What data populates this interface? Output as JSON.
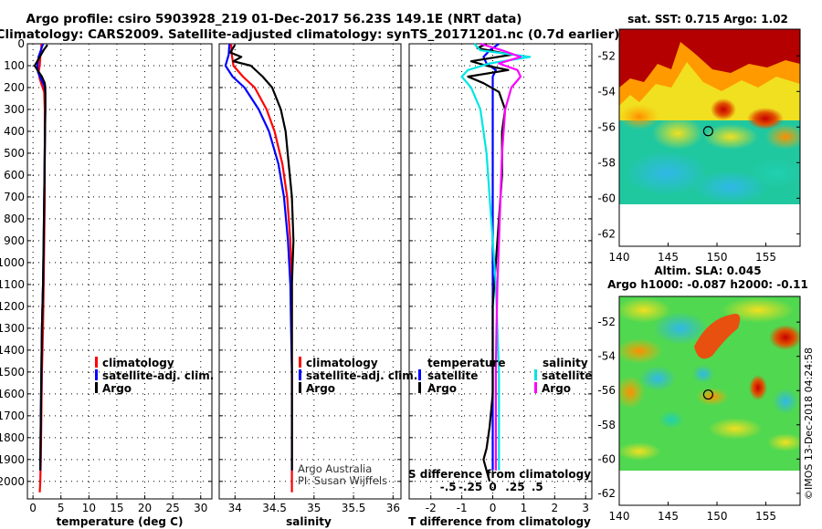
{
  "header": {
    "line1": "Argo profile: csiro 5903928_219 01-Dec-2017 56.23S 149.1E (NRT data)",
    "line2": "Climatology: CARS2009. Satellite-adjusted climatology: synTS_20171201.nc (0.7d earlier)"
  },
  "footer": {
    "argo_australia": "Argo Australia",
    "pi": "PI: Susan Wijffels",
    "imos_stamp": "©IMOS 13-Dec-2018 04:24:58"
  },
  "colors": {
    "climatology": "#ff0000",
    "satellite": "#0000ff",
    "argo": "#000000",
    "salinity_satellite": "#00e5e5",
    "salinity_argo": "#ff00ff"
  },
  "chart_data": [
    {
      "type": "line",
      "name": "temperature-profile",
      "xlabel": "temperature (deg C)",
      "xlim": [
        -1,
        32
      ],
      "xticks": [
        0,
        5,
        10,
        15,
        20,
        25,
        30
      ],
      "ylim": [
        0,
        2080
      ],
      "yticks": [
        0,
        100,
        200,
        300,
        400,
        500,
        600,
        700,
        800,
        900,
        1000,
        1100,
        1200,
        1300,
        1400,
        1500,
        1600,
        1700,
        1800,
        1900,
        2000
      ],
      "grid": true,
      "legend": [
        "climatology",
        "satellite-adj. clim.",
        "Argo"
      ],
      "series": [
        {
          "name": "climatology",
          "color": "#ff0000",
          "x": [
            1.5,
            1.5,
            1.3,
            1.2,
            1.0,
            1.2,
            1.6,
            2.0,
            2.1,
            2.1,
            2.1,
            2.0,
            1.9,
            1.8,
            1.6,
            1.5,
            1.4,
            1.3,
            1.2
          ],
          "y": [
            0,
            30,
            60,
            100,
            130,
            160,
            190,
            220,
            300,
            500,
            700,
            900,
            1100,
            1300,
            1500,
            1700,
            1900,
            2000,
            2050
          ]
        },
        {
          "name": "satellite-adj. clim.",
          "color": "#0000ff",
          "x": [
            1.8,
            1.4,
            1.0,
            0.8,
            0.9,
            1.4,
            2.0,
            2.2,
            2.2,
            2.1,
            2.0,
            1.9,
            1.8,
            1.6,
            1.5,
            1.4,
            1.3
          ],
          "y": [
            0,
            30,
            60,
            100,
            130,
            160,
            190,
            220,
            300,
            500,
            700,
            900,
            1100,
            1300,
            1500,
            1700,
            1950
          ]
        },
        {
          "name": "Argo",
          "color": "#000000",
          "x": [
            2.6,
            2.0,
            1.2,
            0.3,
            0.8,
            1.6,
            2.1,
            2.2,
            2.2,
            2.1,
            2.0,
            1.9,
            1.8,
            1.6,
            1.5,
            1.4,
            1.3
          ],
          "y": [
            5,
            25,
            60,
            100,
            120,
            150,
            180,
            200,
            300,
            500,
            700,
            900,
            1100,
            1300,
            1500,
            1700,
            1950
          ]
        }
      ]
    },
    {
      "type": "line",
      "name": "salinity-profile",
      "xlabel": "salinity",
      "xlim": [
        33.8,
        36.1
      ],
      "xticks": [
        34,
        34.5,
        35,
        35.5,
        36
      ],
      "ylim": [
        0,
        2080
      ],
      "grid": true,
      "legend": [
        "climatology",
        "satellite-adj. clim.",
        "Argo"
      ],
      "series": [
        {
          "name": "climatology",
          "color": "#ff0000",
          "x": [
            33.95,
            33.96,
            33.98,
            34.1,
            34.25,
            34.4,
            34.5,
            34.6,
            34.66,
            34.7,
            34.72,
            34.72,
            34.72,
            34.72,
            34.72
          ],
          "y": [
            0,
            50,
            100,
            150,
            200,
            300,
            400,
            550,
            700,
            900,
            1100,
            1300,
            1500,
            1800,
            2050
          ]
        },
        {
          "name": "satellite-adj. clim.",
          "color": "#0000ff",
          "x": [
            33.93,
            33.92,
            33.88,
            33.97,
            34.12,
            34.3,
            34.43,
            34.55,
            34.62,
            34.67,
            34.7,
            34.71,
            34.72,
            34.72,
            34.72
          ],
          "y": [
            0,
            50,
            100,
            150,
            200,
            300,
            400,
            550,
            700,
            900,
            1100,
            1300,
            1500,
            1800,
            1950
          ]
        },
        {
          "name": "Argo",
          "color": "#000000",
          "x": [
            34.0,
            33.94,
            34.08,
            33.98,
            34.2,
            34.35,
            34.47,
            34.58,
            34.64,
            34.68,
            34.72,
            34.74,
            34.72,
            34.72,
            34.72,
            34.72,
            34.72,
            34.72
          ],
          "y": [
            5,
            40,
            60,
            80,
            100,
            150,
            200,
            300,
            400,
            550,
            700,
            900,
            1100,
            1300,
            1500,
            1700,
            1850,
            1950
          ]
        }
      ]
    },
    {
      "type": "line",
      "name": "difference-profile",
      "xlabel": "T difference from climatology",
      "xlabel2": "S difference from climatology",
      "xlim": [
        -2.7,
        3.2
      ],
      "xticks": [
        -2,
        -1,
        0,
        1,
        2,
        3
      ],
      "xticks2": [
        -0.5,
        -0.25,
        0,
        0.25,
        0.5
      ],
      "ylim": [
        0,
        2080
      ],
      "grid": true,
      "legend_left": {
        "title": "temperature",
        "items": [
          "satellite",
          "Argo"
        ]
      },
      "legend_right": {
        "title": "salinity",
        "items": [
          "satellite",
          "Argo"
        ]
      },
      "series": [
        {
          "name": "temperature satellite",
          "color": "#0000ff",
          "x": [
            0.2,
            -0.1,
            -0.3,
            -0.2,
            0.1,
            0.0,
            0.0,
            0.0,
            0.0,
            0.0,
            0.0,
            0.0,
            0.0,
            0.0,
            0.0,
            0.0
          ],
          "y": [
            0,
            30,
            60,
            90,
            120,
            150,
            200,
            300,
            500,
            700,
            900,
            1100,
            1300,
            1500,
            1700,
            1950
          ]
        },
        {
          "name": "temperature Argo",
          "color": "#000000",
          "x": [
            -0.2,
            -0.5,
            0.6,
            -0.7,
            -0.2,
            0.5,
            -0.8,
            -0.3,
            0.2,
            0.4,
            0.3,
            0.3,
            0.2,
            0.1,
            0.0,
            0.0,
            0.0,
            -0.1,
            -0.2,
            -0.3,
            -0.2,
            -0.1
          ],
          "y": [
            0,
            20,
            50,
            80,
            100,
            120,
            150,
            180,
            220,
            300,
            400,
            600,
            800,
            1000,
            1200,
            1400,
            1600,
            1750,
            1850,
            1900,
            1950,
            2000
          ]
        },
        {
          "name": "salinity satellite",
          "color": "#00e5e5",
          "x": [
            -0.6,
            -0.4,
            1.2,
            -0.1,
            -0.8,
            -1.0,
            -0.7,
            -0.4,
            -0.2,
            -0.1,
            0.0,
            0.1,
            0.15,
            0.2,
            0.2,
            0.2
          ],
          "y": [
            0,
            30,
            60,
            90,
            120,
            150,
            200,
            300,
            500,
            700,
            900,
            1100,
            1300,
            1500,
            1700,
            1950
          ]
        },
        {
          "name": "salinity Argo",
          "color": "#ff00ff",
          "x": [
            -0.4,
            0.3,
            0.9,
            0.2,
            0.8,
            0.9,
            0.6,
            0.4,
            0.3,
            0.25,
            0.2,
            0.15,
            0.12,
            0.1,
            0.1,
            0.1
          ],
          "y": [
            0,
            30,
            60,
            90,
            120,
            150,
            200,
            300,
            500,
            700,
            900,
            1100,
            1300,
            1500,
            1700,
            1950
          ]
        }
      ]
    },
    {
      "type": "heatmap",
      "name": "sst-map",
      "title": "sat. SST: 0.715 Argo: 1.02",
      "xlim": [
        140,
        158.5
      ],
      "xticks": [
        140,
        145,
        150,
        155
      ],
      "ylim": [
        -62.7,
        -50.5
      ],
      "yticks": [
        -52,
        -54,
        -56,
        -58,
        -60,
        -62
      ],
      "data_south_limit": -60,
      "marker": {
        "lon": 149.1,
        "lat": -56.23
      }
    },
    {
      "type": "heatmap",
      "name": "sla-map",
      "title": "Altim. SLA: 0.045",
      "subtitle": "Argo h1000: -0.087 h2000: -0.11",
      "xlim": [
        140,
        158.5
      ],
      "xticks": [
        140,
        145,
        150,
        155
      ],
      "ylim": [
        -62.7,
        -50.5
      ],
      "yticks": [
        -52,
        -54,
        -56,
        -58,
        -60,
        -62
      ],
      "data_south_limit": -60,
      "marker": {
        "lon": 149.1,
        "lat": -56.23
      }
    }
  ]
}
